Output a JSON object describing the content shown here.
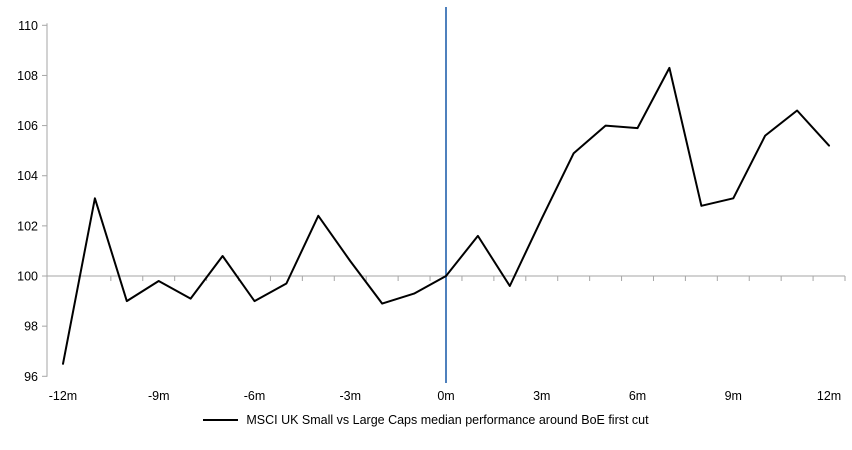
{
  "chart_data": {
    "type": "line",
    "title": "",
    "legend": "MSCI UK Small vs Large Caps median performance around BoE first cut",
    "x": [
      -12,
      -11,
      -10,
      -9,
      -8,
      -7,
      -6,
      -5,
      -4,
      -3,
      -2,
      -1,
      0,
      1,
      2,
      3,
      4,
      5,
      6,
      7,
      8,
      9,
      10,
      11,
      12
    ],
    "series": [
      {
        "name": "MSCI UK Small vs Large Caps median performance around BoE first cut",
        "color": "#000000",
        "values": [
          96.5,
          103.1,
          99.0,
          99.8,
          99.1,
          100.8,
          99.0,
          99.7,
          102.4,
          100.6,
          98.9,
          99.3,
          100.0,
          101.6,
          99.6,
          102.3,
          104.9,
          106.0,
          105.9,
          108.3,
          102.8,
          103.1,
          105.6,
          106.6,
          105.2
        ]
      }
    ],
    "x_ticks": [
      {
        "x": -12,
        "label": "-12m"
      },
      {
        "x": -9,
        "label": "-9m"
      },
      {
        "x": -6,
        "label": "-6m"
      },
      {
        "x": -3,
        "label": "-3m"
      },
      {
        "x": 0,
        "label": "0m"
      },
      {
        "x": 3,
        "label": "3m"
      },
      {
        "x": 6,
        "label": "6m"
      },
      {
        "x": 9,
        "label": "9m"
      },
      {
        "x": 12,
        "label": "12m"
      }
    ],
    "y_ticks": [
      96,
      98,
      100,
      102,
      104,
      106,
      108,
      110
    ],
    "ylim": [
      96,
      110
    ],
    "xlim": [
      -12.5,
      12.5
    ],
    "baseline_value": 100,
    "event_line_x": 0,
    "grid": "baseline-only",
    "legend_position": "bottom-center",
    "colors": {
      "series": "#000000",
      "axis": "#A6A6A6",
      "event_line": "#4F81BD",
      "text": "#000000",
      "background": "#FFFFFF"
    }
  }
}
